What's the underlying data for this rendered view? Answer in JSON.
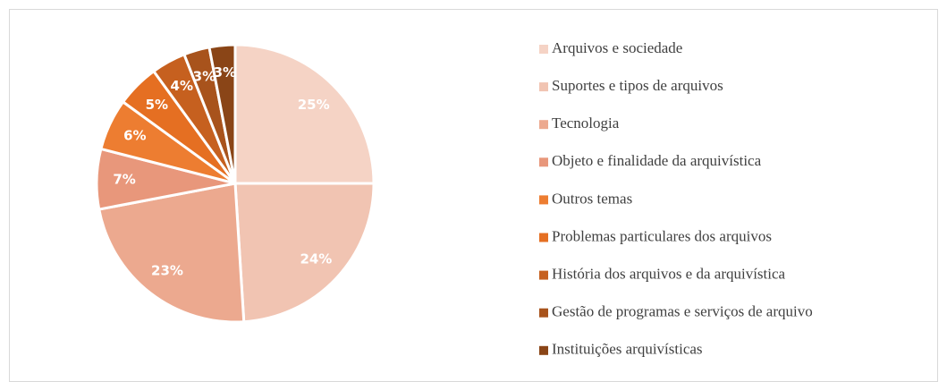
{
  "chart_data": {
    "type": "pie",
    "categories": [
      "Arquivos e sociedade",
      "Suportes e tipos de arquivos",
      "Tecnologia",
      "Objeto e finalidade da arquivística",
      "Outros temas",
      "Problemas particulares dos arquivos",
      "História dos arquivos e da arquivística",
      "Gestão de programas e serviços de arquivo",
      "Instituições arquivísticas"
    ],
    "values": [
      25,
      24,
      23,
      7,
      6,
      5,
      4,
      3,
      3
    ],
    "value_labels": [
      "25%",
      "24%",
      "23%",
      "7%",
      "6%",
      "5%",
      "4%",
      "3%",
      "3%"
    ],
    "colors": [
      "#f5d3c5",
      "#f1c4b2",
      "#eca98f",
      "#e8977b",
      "#ed7d31",
      "#e56f22",
      "#c6601f",
      "#a8531c",
      "#8a4517"
    ],
    "legend": "right"
  }
}
